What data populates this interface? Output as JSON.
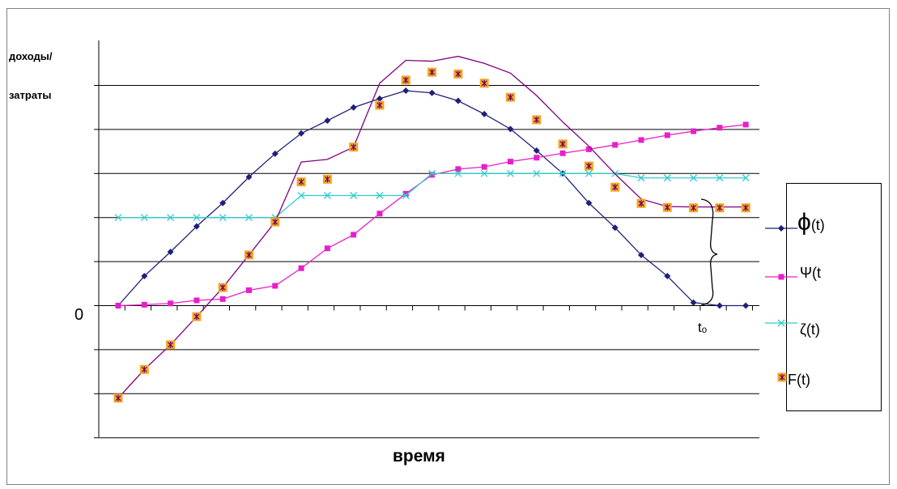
{
  "labels": {
    "y_label_line1": "доходы/",
    "y_label_line2": "затраты",
    "zero": "0",
    "t0": "tₒ",
    "x_label": "время"
  },
  "legend": [
    {
      "id": "phi",
      "symbol": "ϕ",
      "arg": "(t)",
      "marker": "diamond",
      "color": "#1f1f7a"
    },
    {
      "id": "psi",
      "symbol": "Ψ(t",
      "arg": "",
      "marker": "square",
      "color": "#e91ec9"
    },
    {
      "id": "zeta",
      "symbol": "ζ(t)",
      "arg": "",
      "marker": "x",
      "color": "#33cccc"
    },
    {
      "id": "F",
      "symbol": "F(t)",
      "arg": "",
      "marker": "star-square",
      "color": "#800080"
    }
  ],
  "chart_data": {
    "type": "line",
    "x": [
      0,
      1,
      2,
      3,
      4,
      5,
      6,
      7,
      8,
      9,
      10,
      11,
      12,
      13,
      14,
      15,
      16,
      17,
      18,
      19,
      20,
      21,
      22,
      23,
      24
    ],
    "ylim": [
      -3,
      5.7
    ],
    "grid": true,
    "series": [
      {
        "name": "ϕ(t)",
        "marker": "diamond",
        "color": "#1f1f7a",
        "values": [
          0,
          0.67,
          1.22,
          1.8,
          2.33,
          2.92,
          3.45,
          3.91,
          4.2,
          4.5,
          4.7,
          4.88,
          4.83,
          4.65,
          4.35,
          4.01,
          3.52,
          3.0,
          2.33,
          1.77,
          1.15,
          0.67,
          0.07,
          -0.4,
          -0.98
        ]
      },
      {
        "name": "Ψ(t",
        "marker": "square",
        "color": "#e91ec9",
        "values": [
          0,
          0.02,
          0.05,
          0.12,
          0.15,
          0.35,
          0.45,
          0.85,
          1.3,
          1.61,
          2.09,
          2.54,
          2.97,
          3.1,
          3.15,
          3.27,
          3.36,
          3.46,
          3.55,
          3.65,
          3.76,
          3.87,
          3.96,
          4.04,
          4.11
        ]
      },
      {
        "name": "ζ(t)",
        "marker": "x",
        "color": "#33cccc",
        "values": [
          2.0,
          2.0,
          2.0,
          2.0,
          2.0,
          2.0,
          2.0,
          2.5,
          2.5,
          2.5,
          2.5,
          2.5,
          3.0,
          3.0,
          3.0,
          3.0,
          3.0,
          3.0,
          3.0,
          3.0,
          2.9,
          2.9,
          2.9,
          2.9,
          2.9
        ]
      },
      {
        "name": "F(t)",
        "marker": "star-square",
        "color": "#800080",
        "values": [
          -2.1,
          -1.45,
          -0.89,
          -0.25,
          0.41,
          1.15,
          1.9,
          2.81,
          2.87,
          3.6,
          4.55,
          5.12,
          5.3,
          5.26,
          5.05,
          4.73,
          4.22,
          3.67,
          3.17,
          2.69,
          2.32,
          2.23,
          2.22,
          2.22,
          2.22
        ]
      }
    ]
  }
}
